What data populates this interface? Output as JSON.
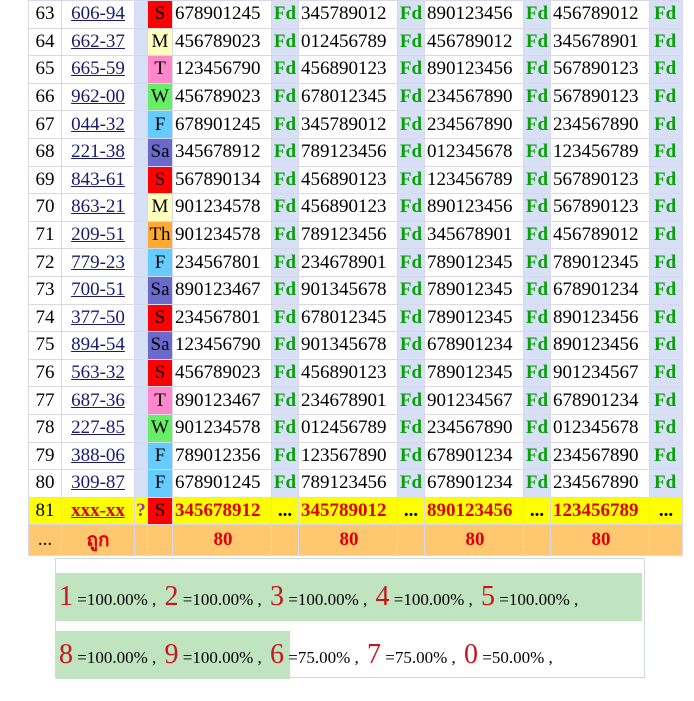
{
  "rows": [
    {
      "n": "63",
      "code": "606-94",
      "day": "S",
      "dayColor": "#ff0000",
      "vals": [
        "678901245",
        "345789012",
        "890123456",
        "456789012"
      ]
    },
    {
      "n": "64",
      "code": "662-37",
      "day": "M",
      "dayColor": "#ffffc0",
      "vals": [
        "456789023",
        "012456789",
        "456789012",
        "345678901"
      ]
    },
    {
      "n": "65",
      "code": "665-59",
      "day": "T",
      "dayColor": "#ff88cc",
      "vals": [
        "123456790",
        "456890123",
        "890123456",
        "567890123"
      ]
    },
    {
      "n": "66",
      "code": "962-00",
      "day": "W",
      "dayColor": "#66ee66",
      "vals": [
        "456789023",
        "678012345",
        "234567890",
        "567890123"
      ]
    },
    {
      "n": "67",
      "code": "044-32",
      "day": "F",
      "dayColor": "#66ccff",
      "vals": [
        "678901245",
        "345789012",
        "234567890",
        "234567890"
      ]
    },
    {
      "n": "68",
      "code": "221-38",
      "day": "Sa",
      "dayColor": "#6a6acc",
      "vals": [
        "345678912",
        "789123456",
        "012345678",
        "123456789"
      ]
    },
    {
      "n": "69",
      "code": "843-61",
      "day": "S",
      "dayColor": "#ff0000",
      "vals": [
        "567890134",
        "456890123",
        "123456789",
        "567890123"
      ]
    },
    {
      "n": "70",
      "code": "863-21",
      "day": "M",
      "dayColor": "#ffffc0",
      "vals": [
        "901234578",
        "456890123",
        "890123456",
        "567890123"
      ]
    },
    {
      "n": "71",
      "code": "209-51",
      "day": "Th",
      "dayColor": "#ffaa33",
      "vals": [
        "901234578",
        "789123456",
        "345678901",
        "456789012"
      ]
    },
    {
      "n": "72",
      "code": "779-23",
      "day": "F",
      "dayColor": "#66ccff",
      "vals": [
        "234567801",
        "234678901",
        "789012345",
        "789012345"
      ]
    },
    {
      "n": "73",
      "code": "700-51",
      "day": "Sa",
      "dayColor": "#6a6acc",
      "vals": [
        "890123467",
        "901345678",
        "789012345",
        "678901234"
      ]
    },
    {
      "n": "74",
      "code": "377-50",
      "day": "S",
      "dayColor": "#ff0000",
      "vals": [
        "234567801",
        "678012345",
        "789012345",
        "890123456"
      ]
    },
    {
      "n": "75",
      "code": "894-54",
      "day": "Sa",
      "dayColor": "#6a6acc",
      "vals": [
        "123456790",
        "901345678",
        "678901234",
        "890123456"
      ]
    },
    {
      "n": "76",
      "code": "563-32",
      "day": "S",
      "dayColor": "#ff0000",
      "vals": [
        "456789023",
        "456890123",
        "789012345",
        "901234567"
      ]
    },
    {
      "n": "77",
      "code": "687-36",
      "day": "T",
      "dayColor": "#ff88cc",
      "vals": [
        "890123467",
        "234678901",
        "901234567",
        "678901234"
      ]
    },
    {
      "n": "78",
      "code": "227-85",
      "day": "W",
      "dayColor": "#66ee66",
      "vals": [
        "901234578",
        "012456789",
        "234567890",
        "012345678"
      ]
    },
    {
      "n": "79",
      "code": "388-06",
      "day": "F",
      "dayColor": "#66ccff",
      "vals": [
        "789012356",
        "123567890",
        "678901234",
        "234567890"
      ]
    },
    {
      "n": "80",
      "code": "309-87",
      "day": "F",
      "dayColor": "#66ccff",
      "vals": [
        "678901245",
        "789123456",
        "678901234",
        "234567890"
      ]
    }
  ],
  "fd_label": "Fd",
  "yellow_row": {
    "n": "81",
    "code": "xxx-xx",
    "q": "?",
    "day": "S",
    "dayColor": "#ff0000",
    "vals": [
      "345678912",
      "345789012",
      "890123456",
      "123456789"
    ],
    "dots": "..."
  },
  "footer_row": {
    "n": "...",
    "label": "ถูก",
    "counts": [
      "80",
      "80",
      "80",
      "80"
    ]
  },
  "summary": {
    "row1": [
      {
        "digit": "1",
        "pct": "=100.00%"
      },
      {
        "digit": "2",
        "pct": "=100.00%"
      },
      {
        "digit": "3",
        "pct": "=100.00%"
      },
      {
        "digit": "4",
        "pct": "=100.00%"
      },
      {
        "digit": "5",
        "pct": "=100.00%"
      }
    ],
    "row2": [
      {
        "digit": "8",
        "pct": "=100.00%"
      },
      {
        "digit": "9",
        "pct": "=100.00%"
      },
      {
        "digit": "6",
        "pct": "=75.00%"
      },
      {
        "digit": "7",
        "pct": "=75.00%"
      },
      {
        "digit": "0",
        "pct": "=50.00%"
      }
    ],
    "sep": ","
  }
}
